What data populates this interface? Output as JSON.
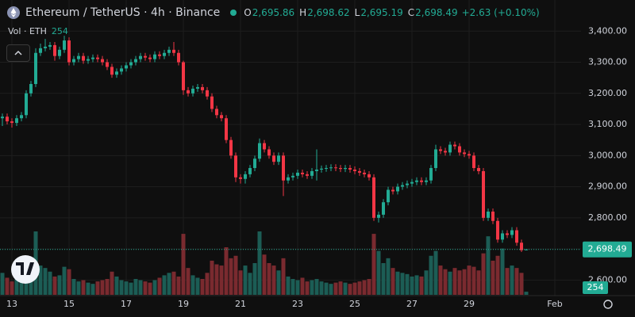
{
  "chart_data": {
    "type": "candlestick",
    "title": "Ethereum / TetherUS · 4h · Binance",
    "legend_keys": [
      "O",
      "H",
      "L",
      "C"
    ],
    "last_labels": {
      "open": "2,695.86",
      "high": "2,698.62",
      "low": "2,695.19",
      "close": "2,698.49"
    },
    "change": {
      "value": 2.63,
      "pct": 0.1,
      "label": "+2.63 (+0.10%)"
    },
    "volume_title": "Vol · ETH",
    "up_color": "#22ab94",
    "down_color": "#f23645",
    "volume_up_color": "#1c5d55",
    "volume_down_color": "#7a2a2f",
    "open": [
      3120,
      3125,
      3110,
      3105,
      3120,
      3130,
      3200,
      3230,
      3330,
      3345,
      3350,
      3355,
      3320,
      3340,
      3370,
      3300,
      3310,
      3320,
      3305,
      3310,
      3315,
      3310,
      3300,
      3285,
      3260,
      3270,
      3280,
      3290,
      3300,
      3310,
      3320,
      3315,
      3310,
      3325,
      3320,
      3330,
      3340,
      3330,
      3300,
      3210,
      3200,
      3215,
      3220,
      3210,
      3190,
      3150,
      3130,
      3120,
      3050,
      3000,
      2930,
      2925,
      2940,
      2960,
      2990,
      3040,
      3020,
      3000,
      2980,
      3000,
      2920,
      2930,
      2935,
      2945,
      2940,
      2935,
      2950,
      2955,
      2958,
      2960,
      2962,
      2960,
      2957,
      2960,
      2955,
      2950,
      2945,
      2940,
      2930,
      2800,
      2810,
      2850,
      2890,
      2885,
      2900,
      2905,
      2910,
      2915,
      2920,
      2915,
      2920,
      2960,
      3020,
      3015,
      3010,
      3035,
      3030,
      3010,
      3005,
      3000,
      2960,
      2950,
      2800,
      2820,
      2790,
      2730,
      2750,
      2745,
      2760,
      2720,
      2695.86
    ],
    "high": [
      3135,
      3135,
      3120,
      3130,
      3140,
      3210,
      3240,
      3345,
      3360,
      3375,
      3365,
      3365,
      3350,
      3385,
      3380,
      3320,
      3330,
      3330,
      3320,
      3325,
      3325,
      3320,
      3310,
      3295,
      3280,
      3290,
      3300,
      3310,
      3320,
      3330,
      3330,
      3325,
      3335,
      3335,
      3340,
      3350,
      3365,
      3340,
      3305,
      3220,
      3225,
      3230,
      3230,
      3220,
      3200,
      3160,
      3140,
      3130,
      3060,
      3010,
      2940,
      2950,
      2970,
      3000,
      3055,
      3050,
      3030,
      3010,
      3010,
      3010,
      2940,
      2945,
      2955,
      2955,
      2950,
      2960,
      3020,
      2968,
      2970,
      2972,
      2972,
      2970,
      2970,
      2970,
      2965,
      2960,
      2955,
      2950,
      2940,
      2820,
      2860,
      2900,
      2900,
      2910,
      2915,
      2920,
      2925,
      2930,
      2930,
      2930,
      2970,
      3035,
      3030,
      3025,
      3045,
      3045,
      3040,
      3020,
      3015,
      3010,
      2970,
      2960,
      2830,
      2830,
      2800,
      2760,
      2760,
      2770,
      2770,
      2730,
      2698.62
    ],
    "low": [
      3095,
      3100,
      3090,
      3095,
      3110,
      3120,
      3190,
      3220,
      3320,
      3335,
      3340,
      3305,
      3310,
      3330,
      3290,
      3290,
      3300,
      3295,
      3295,
      3300,
      3300,
      3290,
      3275,
      3250,
      3250,
      3260,
      3270,
      3280,
      3290,
      3300,
      3305,
      3300,
      3300,
      3310,
      3310,
      3320,
      3320,
      3290,
      3195,
      3190,
      3190,
      3205,
      3200,
      3180,
      3140,
      3120,
      3110,
      3040,
      2990,
      2915,
      2910,
      2910,
      2930,
      2950,
      2980,
      3010,
      2990,
      2970,
      2970,
      2870,
      2910,
      2920,
      2925,
      2930,
      2925,
      2925,
      2920,
      2945,
      2948,
      2950,
      2950,
      2947,
      2947,
      2945,
      2940,
      2935,
      2930,
      2920,
      2790,
      2785,
      2800,
      2840,
      2875,
      2875,
      2890,
      2895,
      2900,
      2905,
      2905,
      2905,
      2910,
      2950,
      3005,
      3000,
      3000,
      3020,
      3000,
      2995,
      2990,
      2950,
      2940,
      2790,
      2790,
      2780,
      2720,
      2720,
      2735,
      2735,
      2710,
      2690,
      2695.19
    ],
    "close": [
      3125,
      3110,
      3105,
      3120,
      3130,
      3200,
      3230,
      3330,
      3345,
      3350,
      3355,
      3320,
      3340,
      3370,
      3300,
      3310,
      3320,
      3305,
      3310,
      3315,
      3310,
      3300,
      3285,
      3260,
      3270,
      3280,
      3290,
      3300,
      3310,
      3320,
      3315,
      3310,
      3325,
      3320,
      3330,
      3340,
      3330,
      3300,
      3210,
      3200,
      3215,
      3220,
      3210,
      3190,
      3150,
      3130,
      3120,
      3050,
      3000,
      2930,
      2925,
      2940,
      2960,
      2990,
      3040,
      3020,
      3000,
      2980,
      3000,
      2920,
      2930,
      2935,
      2945,
      2940,
      2935,
      2950,
      2955,
      2958,
      2960,
      2962,
      2960,
      2957,
      2960,
      2955,
      2950,
      2945,
      2940,
      2930,
      2800,
      2810,
      2850,
      2890,
      2885,
      2900,
      2905,
      2910,
      2915,
      2920,
      2915,
      2920,
      2960,
      3020,
      3015,
      3010,
      3035,
      3030,
      3010,
      3005,
      3000,
      2960,
      2950,
      2800,
      2820,
      2790,
      2730,
      2750,
      2745,
      2760,
      2720,
      2695.86,
      2698.49
    ],
    "volume": [
      1800,
      1400,
      1100,
      1300,
      1500,
      2600,
      2800,
      5200,
      2400,
      2200,
      1900,
      1500,
      1600,
      2300,
      2100,
      1300,
      1100,
      1200,
      1000,
      900,
      1100,
      1200,
      1300,
      1900,
      1500,
      1200,
      1100,
      1000,
      1300,
      1200,
      1100,
      1000,
      1200,
      1400,
      1600,
      1800,
      1900,
      1500,
      5000,
      2200,
      1600,
      1400,
      1300,
      1800,
      2800,
      2500,
      2400,
      3900,
      3000,
      3200,
      2000,
      2400,
      1800,
      2600,
      5200,
      3300,
      2600,
      2400,
      2000,
      3000,
      1500,
      1300,
      1200,
      1400,
      1100,
      1200,
      1300,
      1100,
      1000,
      900,
      1000,
      1100,
      1000,
      900,
      1000,
      1100,
      1200,
      1300,
      5000,
      3600,
      2600,
      3000,
      2200,
      1900,
      1800,
      1700,
      1500,
      1600,
      1500,
      2000,
      3200,
      3600,
      2400,
      2100,
      1900,
      2200,
      2000,
      2100,
      2400,
      2300,
      2000,
      3400,
      4800,
      2800,
      3200,
      3800,
      2200,
      2400,
      2200,
      1800,
      254
    ],
    "xlim": [
      -0.5,
      121.5
    ],
    "xticks": [
      {
        "value": 2,
        "label": "13"
      },
      {
        "value": 14,
        "label": "15"
      },
      {
        "value": 26,
        "label": "17"
      },
      {
        "value": 38,
        "label": "19"
      },
      {
        "value": 50,
        "label": "21"
      },
      {
        "value": 62,
        "label": "23"
      },
      {
        "value": 74,
        "label": "25"
      },
      {
        "value": 86,
        "label": "27"
      },
      {
        "value": 98,
        "label": "29"
      },
      {
        "value": 116,
        "label": "Feb"
      }
    ],
    "ylim": [
      2550,
      3500
    ],
    "yticks": [
      {
        "value": 2600,
        "label": "2,600.00"
      },
      {
        "value": 2700,
        "label": "2,700.00"
      },
      {
        "value": 2800,
        "label": "2,800.00"
      },
      {
        "value": 2900,
        "label": "2,900.00"
      },
      {
        "value": 3000,
        "label": "3,000.00"
      },
      {
        "value": 3100,
        "label": "3,100.00"
      },
      {
        "value": 3200,
        "label": "3,200.00"
      },
      {
        "value": 3300,
        "label": "3,300.00"
      },
      {
        "value": 3400,
        "label": "3,400.00"
      }
    ],
    "grid": true
  }
}
